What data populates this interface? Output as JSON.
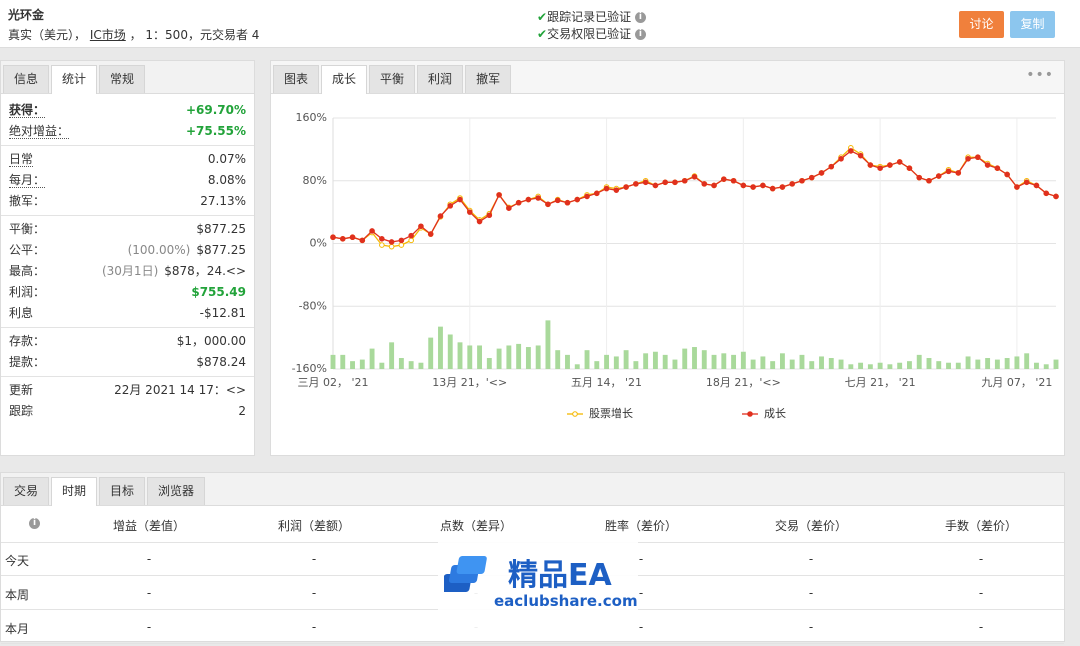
{
  "header": {
    "title": "光环金",
    "subtitle": [
      "真实（美元），",
      "IC市场",
      "， 1：500，元交易者 4"
    ],
    "verifications": [
      "跟踪记录已验证",
      "交易权限已验证"
    ],
    "buttons": [
      "讨论",
      "复制"
    ]
  },
  "stats_panel": {
    "tabs": [
      "信息",
      "统计",
      "常规"
    ],
    "active_tab": 1,
    "groups": [
      [
        {
          "label": "获得：",
          "value": "+69.70%",
          "color": "#22a33a",
          "dotted": true,
          "bold": true
        },
        {
          "label": "绝对增益：",
          "value": "+75.55%",
          "color": "#22a33a",
          "dotted": true
        }
      ],
      [
        {
          "label": "日常",
          "value": "0.07%",
          "dotted": true
        },
        {
          "label": "每月：",
          "value": "8.08%",
          "dotted": true
        },
        {
          "label": "撤军：",
          "value": "27.13%"
        }
      ],
      [
        {
          "label": "平衡：",
          "value": "$877.25"
        },
        {
          "label": "公平：",
          "note": "(100.00%)",
          "value": "$877.25"
        },
        {
          "label": "最高：",
          "note": "(30月1日)",
          "value": "$878，24.<>"
        },
        {
          "label": "利润：",
          "value": "$755.49",
          "color": "#22a33a"
        },
        {
          "label": "利息",
          "value": "-$12.81"
        }
      ],
      [
        {
          "label": "存款：",
          "value": "$1，000.00"
        },
        {
          "label": "提款：",
          "value": "$878.24"
        }
      ],
      [
        {
          "label": "更新",
          "value": "22月 2021 14 17：<>"
        },
        {
          "label": "跟踪",
          "value": "2"
        }
      ]
    ]
  },
  "chart_panel": {
    "tabs": [
      "图表",
      "成长",
      "平衡",
      "利润",
      "撤军"
    ],
    "active_tab": 1
  },
  "chart_data": {
    "type": "line",
    "categories": [
      "三月 02， '21",
      null,
      null,
      null,
      null,
      null,
      null,
      null,
      null,
      null,
      null,
      null,
      null,
      null,
      "13月 21，'<>",
      null,
      null,
      null,
      null,
      null,
      null,
      null,
      null,
      null,
      null,
      null,
      null,
      null,
      "五月 14， '21",
      null,
      null,
      null,
      null,
      null,
      null,
      null,
      null,
      null,
      null,
      null,
      null,
      null,
      "18月 21，'<>",
      null,
      null,
      null,
      null,
      null,
      null,
      null,
      null,
      null,
      null,
      null,
      null,
      null,
      "七月 21， '21",
      null,
      null,
      null,
      null,
      null,
      null,
      null,
      null,
      null,
      null,
      null,
      null,
      null,
      "九月 07， '21",
      null,
      null,
      null,
      null
    ],
    "series": [
      {
        "name": "股票增长",
        "color": "#f5b800",
        "values": [
          8,
          6,
          8,
          4,
          14,
          -2,
          -4,
          -2,
          4,
          20,
          12,
          34,
          50,
          58,
          42,
          30,
          38,
          62,
          46,
          52,
          56,
          60,
          50,
          56,
          52,
          56,
          62,
          64,
          72,
          70,
          72,
          76,
          80,
          74,
          78,
          78,
          80,
          86,
          76,
          74,
          82,
          80,
          74,
          72,
          74,
          70,
          72,
          76,
          80,
          84,
          90,
          98,
          110,
          122,
          114,
          100,
          98,
          100,
          104,
          96,
          84,
          80,
          86,
          94,
          90,
          110,
          110,
          102,
          96,
          88,
          72,
          80,
          74,
          64,
          60
        ]
      },
      {
        "name": "成长",
        "color": "#e0301e",
        "values": [
          8,
          6,
          8,
          4,
          16,
          6,
          2,
          4,
          10,
          22,
          12,
          35,
          48,
          56,
          40,
          28,
          36,
          62,
          45,
          52,
          56,
          58,
          50,
          55,
          52,
          56,
          60,
          64,
          70,
          68,
          72,
          76,
          78,
          74,
          78,
          78,
          80,
          85,
          76,
          74,
          82,
          80,
          74,
          72,
          74,
          70,
          72,
          76,
          80,
          84,
          90,
          98,
          108,
          118,
          112,
          100,
          96,
          100,
          104,
          96,
          84,
          80,
          86,
          92,
          90,
          108,
          110,
          100,
          96,
          88,
          72,
          78,
          74,
          64,
          60
        ]
      }
    ],
    "bar_values": [
      18,
      18,
      10,
      12,
      26,
      8,
      34,
      14,
      10,
      8,
      40,
      54,
      44,
      34,
      30,
      30,
      14,
      26,
      30,
      32,
      28,
      30,
      62,
      24,
      18,
      6,
      24,
      10,
      18,
      16,
      24,
      10,
      20,
      22,
      18,
      12,
      26,
      28,
      24,
      18,
      20,
      18,
      22,
      12,
      16,
      10,
      20,
      12,
      18,
      10,
      16,
      14,
      12,
      6,
      8,
      6,
      8,
      6,
      8,
      10,
      18,
      14,
      10,
      8,
      8,
      16,
      12,
      14,
      12,
      14,
      16,
      20,
      8,
      6,
      12
    ],
    "bar_color": "#a9d99b",
    "ylim": [
      -160,
      160
    ],
    "yticks": [
      {
        "value": 160,
        "label": "160%"
      },
      {
        "value": 80,
        "label": "80%"
      },
      {
        "value": 0,
        "label": "0%"
      },
      {
        "value": -80,
        "label": "-80%"
      },
      {
        "value": -160,
        "label": "-160%"
      }
    ],
    "grid": true,
    "legend": "bottom"
  },
  "period_table": {
    "tabs": [
      "交易",
      "时期",
      "目标",
      "浏览器"
    ],
    "active_tab": 1,
    "columns": [
      "增益（差值）",
      "利润（差额）",
      "点数（差异）",
      "胜率（差价）",
      "交易（差价）",
      "手数（差价）"
    ],
    "rows": [
      {
        "label": "今天",
        "cells": [
          "-",
          "-",
          "-",
          "-",
          "-",
          "-"
        ]
      },
      {
        "label": "本周",
        "cells": [
          "-",
          "-",
          "-",
          "-",
          "-",
          "-"
        ]
      },
      {
        "label": "本月",
        "cells": [
          "-",
          "-",
          "-",
          "-",
          "-",
          "-"
        ]
      }
    ]
  },
  "watermark": {
    "title": "精品EA",
    "url": "eaclubshare.com"
  }
}
